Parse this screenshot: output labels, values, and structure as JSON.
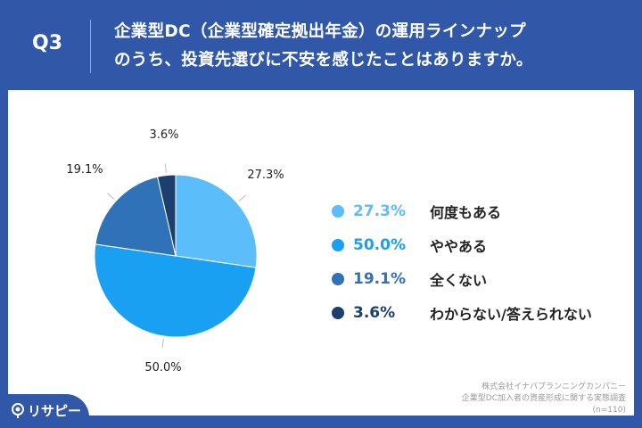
{
  "header": {
    "q": "Q3",
    "title_line1": "企業型DC（企業型確定拠出年金）の運用ラインナップ",
    "title_line2": "のうち、投資先選びに不安を感じたことはありますか。"
  },
  "chart_data": {
    "type": "pie",
    "title": "企業型DC（企業型確定拠出年金）の運用ラインナップのうち、投資先選びに不安を感じたことはありますか。",
    "categories": [
      "何度もある",
      "ややある",
      "全くない",
      "わからない/答えられない"
    ],
    "values": [
      27.3,
      50.0,
      19.1,
      3.6
    ],
    "labels": [
      "27.3%",
      "50.0%",
      "19.1%",
      "3.6%"
    ],
    "colors": [
      "#5bbdf9",
      "#1aa0f2",
      "#2f72b8",
      "#1c3f6e"
    ],
    "legend": "right"
  },
  "source": {
    "line1": "株式会社イナバプランニングカンパニー",
    "line2": "企業型DC加入者の資産形成に関する実態調査",
    "line3": "(n=110)"
  },
  "logo": {
    "text": "リサピー"
  }
}
